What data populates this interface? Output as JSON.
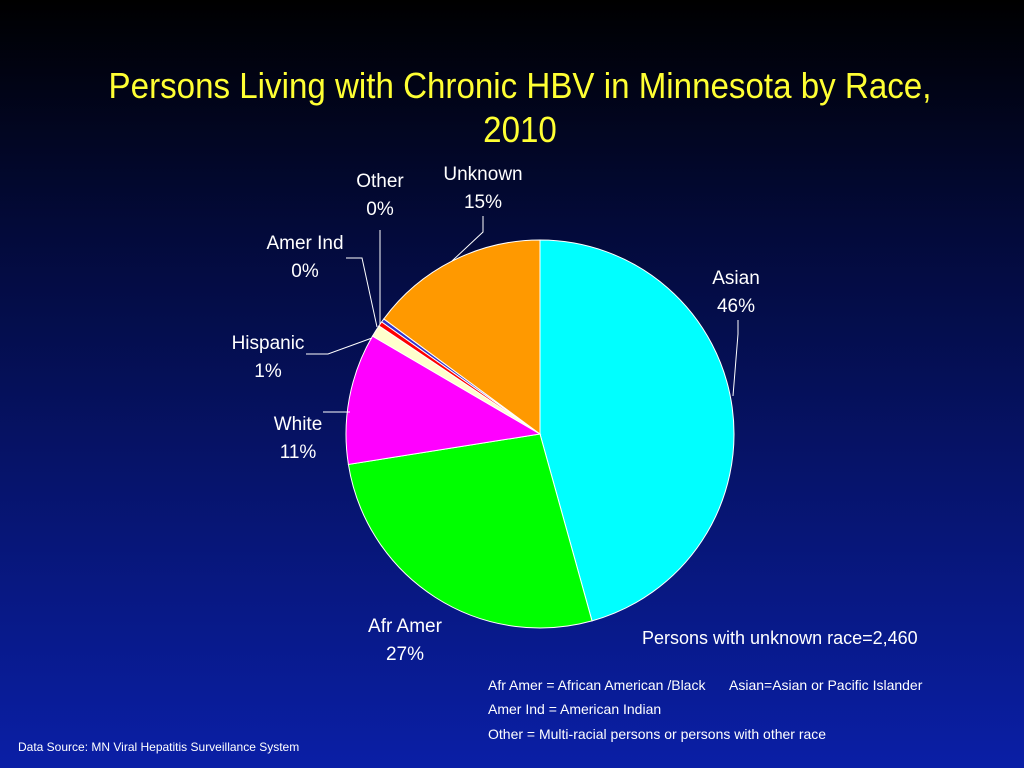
{
  "chart_data": {
    "type": "pie",
    "title": "Persons Living with Chronic HBV in Minnesota by Race, 2010",
    "slices": [
      {
        "label": "Asian",
        "value": 46,
        "value_label": "46%",
        "color": "#00ffff"
      },
      {
        "label": "Afr Amer",
        "value": 27,
        "value_label": "27%",
        "color": "#00ff00"
      },
      {
        "label": "White",
        "value": 11,
        "value_label": "11%",
        "color": "#ff00ff"
      },
      {
        "label": "Hispanic",
        "value": 1,
        "value_label": "1%",
        "color": "#ffffcc"
      },
      {
        "label": "Amer Ind",
        "value": 0.4,
        "value_label": "0%",
        "color": "#ff0000"
      },
      {
        "label": "Other",
        "value": 0.3,
        "value_label": "0%",
        "color": "#3333cc"
      },
      {
        "label": "Unknown",
        "value": 15,
        "value_label": "15%",
        "color": "#ff9900"
      }
    ]
  },
  "notes": {
    "unknown_race": "Persons with unknown race=2,460",
    "abbrev_afr_amer": "Afr Amer = African American /Black",
    "abbrev_asian": "Asian=Asian or Pacific Islander",
    "abbrev_amer_ind": "Amer Ind = American Indian",
    "abbrev_other": "Other = Multi-racial persons or persons with other race"
  },
  "footer": {
    "data_source": "Data Source: MN Viral Hepatitis Surveillance System"
  }
}
